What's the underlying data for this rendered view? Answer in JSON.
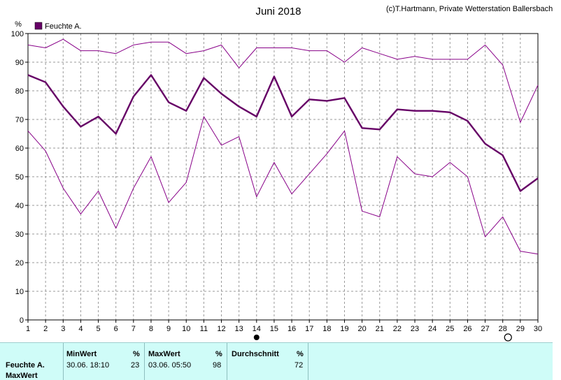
{
  "copyright": "(c)T.Hartmann, Private Wetterstation Ballersbach",
  "chart_data": {
    "type": "line",
    "title": "Juni 2018",
    "ylabel": "%",
    "xlabel": "",
    "ylim": [
      0,
      100
    ],
    "yticks": [
      0,
      10,
      20,
      30,
      40,
      50,
      60,
      70,
      80,
      90,
      100
    ],
    "x": [
      1,
      2,
      3,
      4,
      5,
      6,
      7,
      8,
      9,
      10,
      11,
      12,
      13,
      14,
      15,
      16,
      17,
      18,
      19,
      20,
      21,
      22,
      23,
      24,
      25,
      26,
      27,
      28,
      29,
      30
    ],
    "grid": true,
    "legend": "top-left",
    "series": [
      {
        "name": "Feuchte A.",
        "role": "avg",
        "color": "#660066",
        "values": [
          85.5,
          83,
          74.5,
          67.5,
          71,
          65,
          78,
          85.5,
          76,
          73,
          84.5,
          79,
          74.5,
          71,
          85,
          71,
          77,
          76.5,
          77.5,
          67,
          66.5,
          73.5,
          73,
          73,
          72.5,
          69.5,
          61.5,
          57.5,
          45,
          49.5
        ]
      },
      {
        "role": "max",
        "color": "#880088",
        "values": [
          96,
          95,
          98,
          94,
          94,
          93,
          96,
          97,
          97,
          93,
          94,
          96,
          88,
          95,
          95,
          95,
          94,
          94,
          90,
          95,
          93,
          91,
          92,
          91,
          91,
          91,
          96,
          89,
          69,
          82
        ]
      },
      {
        "role": "min",
        "color": "#880088",
        "values": [
          66,
          59,
          46,
          37,
          45,
          32,
          46,
          57,
          41,
          48,
          71,
          61,
          64,
          43,
          55,
          44,
          51,
          58,
          66,
          38,
          36,
          57,
          51,
          50,
          55,
          50,
          29,
          36,
          24,
          23
        ]
      }
    ],
    "markers": [
      {
        "type": "filled-circle",
        "x": 14
      },
      {
        "type": "open-circle",
        "x": 28.3
      }
    ]
  },
  "footer": {
    "row_label_1": "Feuchte A.",
    "row_label_2": "MaxWert",
    "min": {
      "header": "MinWert",
      "unit": "%",
      "time": "30.06.  18:10",
      "value": "23"
    },
    "max": {
      "header": "MaxWert",
      "unit": "%",
      "time": "03.06.  05:50",
      "value": "98"
    },
    "avg": {
      "header": "Durchschnitt",
      "unit": "%",
      "value": "72"
    }
  }
}
